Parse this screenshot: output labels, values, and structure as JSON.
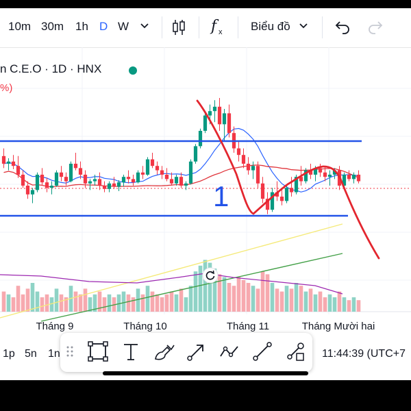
{
  "toolbar": {
    "intervals": [
      "10m",
      "30m",
      "1h",
      "D",
      "W"
    ],
    "active_interval": "D",
    "interval_dropdown_icon": "chevron-down-icon",
    "candle_icon": "candles-icon",
    "indicator_icon": "fx-icon",
    "chart_type_label": "Biểu đồ",
    "undo_icon": "undo-icon",
    "redo_icon": "redo-icon"
  },
  "legend": {
    "symbol_line": "n C.E.O · 1D · HNX",
    "change_fragment": "%)"
  },
  "colors": {
    "up": "#089981",
    "down": "#f23645",
    "volume_up": "#8fd3c6",
    "volume_down": "#f7a9af",
    "ma_blue": "#2962ff",
    "ma_red": "#e0353c",
    "ma_yellow": "#f5ea7a",
    "ma_green": "#43a047",
    "vol_ma_purple": "#9c27b0",
    "drawn_lines": "#2353e8",
    "drawn_red": "#e3262f"
  },
  "annotation_label": "1",
  "reset_icon": "reset-icon",
  "time_axis": [
    "Tháng 9",
    "Tháng 10",
    "Tháng 11",
    "Tháng Mười hai"
  ],
  "bottom": {
    "ranges": [
      "1p",
      "5n",
      "1n"
    ],
    "clock": "11:44:39 (UTC+7"
  },
  "drawing_tools": [
    "drag-handle-icon",
    "rectangle-tool-icon",
    "text-tool-icon",
    "brush-tool-icon",
    "arrow-tool-icon",
    "path-tool-icon",
    "line-tool-icon",
    "node-tool-icon"
  ],
  "chart_data": {
    "type": "candlestick",
    "symbol": "C.E.O",
    "timeframe": "1D",
    "exchange": "HNX",
    "x_labels": [
      "Tháng 9",
      "Tháng 10",
      "Tháng 11",
      "Tháng Mười hai"
    ],
    "candles": [
      {
        "o": 57,
        "h": 64,
        "l": 46,
        "c": 50
      },
      {
        "o": 50,
        "h": 55,
        "l": 44,
        "c": 52
      },
      {
        "o": 52,
        "h": 58,
        "l": 45,
        "c": 48
      },
      {
        "o": 48,
        "h": 57,
        "l": 37,
        "c": 40
      },
      {
        "o": 40,
        "h": 44,
        "l": 28,
        "c": 30
      },
      {
        "o": 30,
        "h": 34,
        "l": 18,
        "c": 22
      },
      {
        "o": 22,
        "h": 28,
        "l": 14,
        "c": 26
      },
      {
        "o": 26,
        "h": 42,
        "l": 24,
        "c": 40
      },
      {
        "o": 40,
        "h": 46,
        "l": 30,
        "c": 33
      },
      {
        "o": 33,
        "h": 37,
        "l": 24,
        "c": 28
      },
      {
        "o": 28,
        "h": 34,
        "l": 22,
        "c": 30
      },
      {
        "o": 30,
        "h": 44,
        "l": 29,
        "c": 42
      },
      {
        "o": 42,
        "h": 48,
        "l": 34,
        "c": 38
      },
      {
        "o": 38,
        "h": 42,
        "l": 30,
        "c": 34
      },
      {
        "o": 34,
        "h": 52,
        "l": 33,
        "c": 50
      },
      {
        "o": 50,
        "h": 60,
        "l": 44,
        "c": 46
      },
      {
        "o": 46,
        "h": 52,
        "l": 36,
        "c": 40
      },
      {
        "o": 40,
        "h": 44,
        "l": 28,
        "c": 32
      },
      {
        "o": 32,
        "h": 36,
        "l": 26,
        "c": 34
      },
      {
        "o": 34,
        "h": 40,
        "l": 30,
        "c": 36
      },
      {
        "o": 36,
        "h": 42,
        "l": 26,
        "c": 30
      },
      {
        "o": 30,
        "h": 34,
        "l": 24,
        "c": 27
      },
      {
        "o": 27,
        "h": 34,
        "l": 24,
        "c": 32
      },
      {
        "o": 32,
        "h": 38,
        "l": 27,
        "c": 29
      },
      {
        "o": 29,
        "h": 35,
        "l": 25,
        "c": 33
      },
      {
        "o": 33,
        "h": 40,
        "l": 29,
        "c": 38
      },
      {
        "o": 38,
        "h": 44,
        "l": 32,
        "c": 36
      },
      {
        "o": 36,
        "h": 40,
        "l": 30,
        "c": 33
      },
      {
        "o": 33,
        "h": 44,
        "l": 32,
        "c": 42
      },
      {
        "o": 42,
        "h": 48,
        "l": 36,
        "c": 40
      },
      {
        "o": 40,
        "h": 56,
        "l": 39,
        "c": 54
      },
      {
        "o": 54,
        "h": 60,
        "l": 46,
        "c": 48
      },
      {
        "o": 48,
        "h": 52,
        "l": 40,
        "c": 44
      },
      {
        "o": 44,
        "h": 48,
        "l": 36,
        "c": 40
      },
      {
        "o": 40,
        "h": 46,
        "l": 34,
        "c": 36
      },
      {
        "o": 36,
        "h": 42,
        "l": 30,
        "c": 32
      },
      {
        "o": 32,
        "h": 40,
        "l": 30,
        "c": 38
      },
      {
        "o": 38,
        "h": 42,
        "l": 28,
        "c": 30
      },
      {
        "o": 30,
        "h": 34,
        "l": 26,
        "c": 32
      },
      {
        "o": 32,
        "h": 54,
        "l": 31,
        "c": 52
      },
      {
        "o": 52,
        "h": 68,
        "l": 50,
        "c": 66
      },
      {
        "o": 66,
        "h": 82,
        "l": 64,
        "c": 80
      },
      {
        "o": 80,
        "h": 98,
        "l": 78,
        "c": 94
      },
      {
        "o": 94,
        "h": 104,
        "l": 86,
        "c": 98
      },
      {
        "o": 98,
        "h": 108,
        "l": 88,
        "c": 102
      },
      {
        "o": 102,
        "h": 110,
        "l": 80,
        "c": 86
      },
      {
        "o": 86,
        "h": 100,
        "l": 70,
        "c": 96
      },
      {
        "o": 96,
        "h": 104,
        "l": 74,
        "c": 78
      },
      {
        "o": 78,
        "h": 84,
        "l": 60,
        "c": 64
      },
      {
        "o": 64,
        "h": 70,
        "l": 52,
        "c": 58
      },
      {
        "o": 58,
        "h": 64,
        "l": 46,
        "c": 50
      },
      {
        "o": 50,
        "h": 56,
        "l": 40,
        "c": 44
      },
      {
        "o": 44,
        "h": 52,
        "l": 36,
        "c": 48
      },
      {
        "o": 48,
        "h": 52,
        "l": 28,
        "c": 32
      },
      {
        "o": 32,
        "h": 38,
        "l": 14,
        "c": 18
      },
      {
        "o": 18,
        "h": 24,
        "l": 4,
        "c": 8
      },
      {
        "o": 8,
        "h": 28,
        "l": 6,
        "c": 24
      },
      {
        "o": 24,
        "h": 34,
        "l": 16,
        "c": 20
      },
      {
        "o": 20,
        "h": 26,
        "l": 12,
        "c": 16
      },
      {
        "o": 16,
        "h": 30,
        "l": 14,
        "c": 28
      },
      {
        "o": 28,
        "h": 38,
        "l": 20,
        "c": 24
      },
      {
        "o": 24,
        "h": 40,
        "l": 22,
        "c": 38
      },
      {
        "o": 38,
        "h": 48,
        "l": 30,
        "c": 34
      },
      {
        "o": 34,
        "h": 46,
        "l": 32,
        "c": 44
      },
      {
        "o": 44,
        "h": 50,
        "l": 36,
        "c": 40
      },
      {
        "o": 40,
        "h": 48,
        "l": 34,
        "c": 46
      },
      {
        "o": 46,
        "h": 50,
        "l": 38,
        "c": 42
      },
      {
        "o": 42,
        "h": 48,
        "l": 34,
        "c": 38
      },
      {
        "o": 38,
        "h": 44,
        "l": 30,
        "c": 40
      },
      {
        "o": 40,
        "h": 46,
        "l": 36,
        "c": 44
      },
      {
        "o": 44,
        "h": 48,
        "l": 26,
        "c": 30
      },
      {
        "o": 30,
        "h": 42,
        "l": 28,
        "c": 40
      },
      {
        "o": 40,
        "h": 44,
        "l": 34,
        "c": 36
      },
      {
        "o": 36,
        "h": 42,
        "l": 32,
        "c": 40
      },
      {
        "o": 40,
        "h": 44,
        "l": 32,
        "c": 34
      }
    ],
    "volumes": [
      7,
      6,
      5,
      9,
      6,
      8,
      10,
      7,
      5,
      6,
      5,
      8,
      6,
      5,
      9,
      7,
      6,
      8,
      5,
      6,
      7,
      5,
      6,
      5,
      6,
      7,
      6,
      5,
      8,
      6,
      9,
      7,
      6,
      5,
      6,
      7,
      6,
      8,
      5,
      9,
      14,
      16,
      18,
      17,
      15,
      13,
      12,
      10,
      9,
      12,
      11,
      10,
      9,
      8,
      14,
      13,
      10,
      8,
      7,
      9,
      8,
      10,
      9,
      7,
      8,
      6,
      7,
      5,
      6,
      5,
      7,
      5,
      4,
      5,
      4
    ]
  }
}
